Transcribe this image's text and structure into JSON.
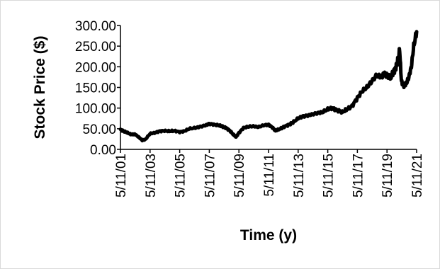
{
  "chart_data": {
    "type": "line",
    "title": "",
    "xlabel": "Time (y)",
    "ylabel": "Stock Price ($)",
    "x_ticks": [
      "5/11/01",
      "5/11/03",
      "5/11/05",
      "5/11/07",
      "5/11/09",
      "5/11/11",
      "5/11/13",
      "5/11/15",
      "5/11/17",
      "5/11/19",
      "5/11/21"
    ],
    "y_ticks": [
      "0.00",
      "50.00",
      "100.00",
      "150.00",
      "200.00",
      "250.00",
      "300.00"
    ],
    "ylim": [
      0,
      300
    ],
    "xlim": [
      "2001-05-11",
      "2021-05-11"
    ],
    "grid": false,
    "legend": "none",
    "line_color": "#000000",
    "series": [
      {
        "x": [
          "2001-05-11",
          "2001-08-01",
          "2001-11-01",
          "2002-02-01",
          "2002-05-01",
          "2002-08-01",
          "2002-11-01",
          "2003-01-15",
          "2003-05-11",
          "2003-09-01",
          "2004-01-01",
          "2004-05-01",
          "2004-09-01",
          "2005-01-01",
          "2005-05-11",
          "2005-09-01",
          "2006-01-01",
          "2006-06-01",
          "2006-10-01",
          "2007-02-01",
          "2007-05-11",
          "2007-09-01",
          "2008-01-01",
          "2008-04-01",
          "2008-07-01",
          "2008-10-01",
          "2009-01-01",
          "2009-03-01",
          "2009-05-11",
          "2009-09-01",
          "2010-01-01",
          "2010-05-01",
          "2010-09-01",
          "2011-01-01",
          "2011-05-11",
          "2011-08-15",
          "2011-11-01",
          "2012-03-01",
          "2012-06-01",
          "2012-10-01",
          "2013-01-01",
          "2013-05-11",
          "2013-09-01",
          "2014-01-01",
          "2014-05-01",
          "2014-09-01",
          "2015-01-01",
          "2015-05-11",
          "2015-09-01",
          "2016-01-01",
          "2016-05-01",
          "2016-09-01",
          "2017-01-01",
          "2017-05-11",
          "2017-09-01",
          "2018-01-01",
          "2018-05-01",
          "2018-09-01",
          "2018-12-24",
          "2019-03-01",
          "2019-05-11",
          "2019-08-01",
          "2019-10-01",
          "2019-12-01",
          "2020-01-20",
          "2020-03-20",
          "2020-05-01",
          "2020-07-01",
          "2020-09-01",
          "2020-11-01",
          "2021-01-01",
          "2021-03-01",
          "2021-05-11"
        ],
        "y": [
          48,
          44,
          40,
          36,
          37,
          30,
          22,
          24,
          38,
          40,
          44,
          45,
          44,
          45,
          42,
          44,
          50,
          52,
          55,
          58,
          62,
          60,
          58,
          55,
          52,
          45,
          35,
          30,
          40,
          52,
          55,
          56,
          54,
          58,
          60,
          53,
          45,
          50,
          55,
          60,
          65,
          75,
          80,
          82,
          85,
          88,
          90,
          97,
          100,
          95,
          90,
          97,
          105,
          125,
          140,
          150,
          165,
          180,
          175,
          185,
          178,
          172,
          185,
          195,
          210,
          240,
          165,
          155,
          160,
          175,
          200,
          250,
          285
        ]
      }
    ]
  }
}
